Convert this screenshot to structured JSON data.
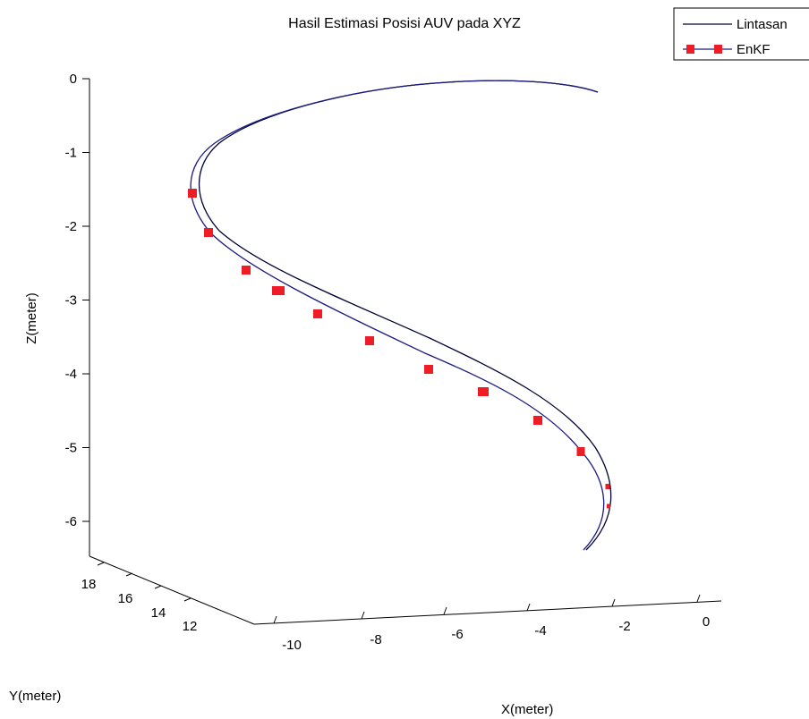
{
  "chart_data": {
    "type": "line",
    "title": "Hasil Estimasi Posisi AUV pada XYZ",
    "xlabel": "X(meter)",
    "ylabel": "Y(meter)",
    "zlabel": "Z(meter)",
    "x_ticks": [
      "-10",
      "-8",
      "-6",
      "-4",
      "-2",
      "0"
    ],
    "y_ticks": [
      "18",
      "16",
      "14",
      "12"
    ],
    "z_ticks": [
      "0",
      "-1",
      "-2",
      "-3",
      "-4",
      "-5",
      "-6"
    ],
    "legend_position": "top-right",
    "series": [
      {
        "name": "Lintasan",
        "color": "#000033",
        "marker": "none",
        "z": [
          0,
          -0.05,
          -0.15,
          -0.5,
          -1.0,
          -1.5,
          -2.0,
          -2.5,
          -3.0,
          -3.5,
          -4.0,
          -4.5,
          -5.0,
          -5.4,
          -5.7,
          -6.0,
          -6.35
        ]
      },
      {
        "name": "EnKF",
        "color": "#ee1c24",
        "marker": "square",
        "z": [
          0,
          -0.05,
          -0.15,
          -0.5,
          -1.0,
          -1.55,
          -2.05,
          -2.55,
          -2.85,
          -3.15,
          -3.55,
          -3.9,
          -4.2,
          -4.6,
          -5.0,
          -5.5,
          -5.78,
          -6.35
        ],
        "marker_z": [
          -1.55,
          -2.05,
          -2.55,
          -2.85,
          -3.15,
          -3.55,
          -3.9,
          -4.2,
          -4.6,
          -5.0,
          -5.5,
          -5.78
        ]
      }
    ]
  }
}
